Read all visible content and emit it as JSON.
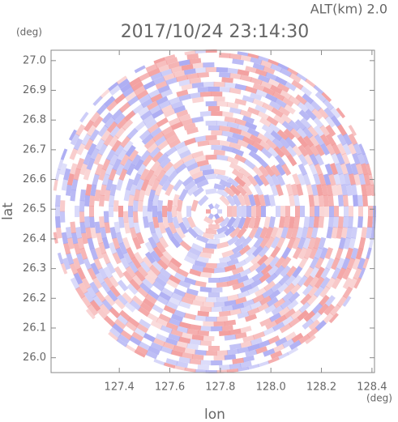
{
  "chart_data": {
    "type": "image",
    "title": "2017/10/24 23:14:30",
    "subtitle": "ALT(km) 2.0",
    "x_label": "lon",
    "y_label": "lat",
    "x_unit": "(deg)",
    "y_unit": "(deg)",
    "xlim": [
      127.13,
      128.41
    ],
    "ylim": [
      25.95,
      27.035
    ],
    "xticks": [
      127.4,
      127.6,
      127.8,
      {
        "value": 128,
        "label": "128.0"
      },
      128.2,
      128.4
    ],
    "yticks": [
      {
        "value": 26,
        "label": "26.0"
      },
      26.1,
      26.2,
      26.3,
      26.4,
      26.5,
      26.6,
      26.7,
      26.8,
      26.9,
      {
        "value": 27,
        "label": "27.0"
      }
    ]
  }
}
